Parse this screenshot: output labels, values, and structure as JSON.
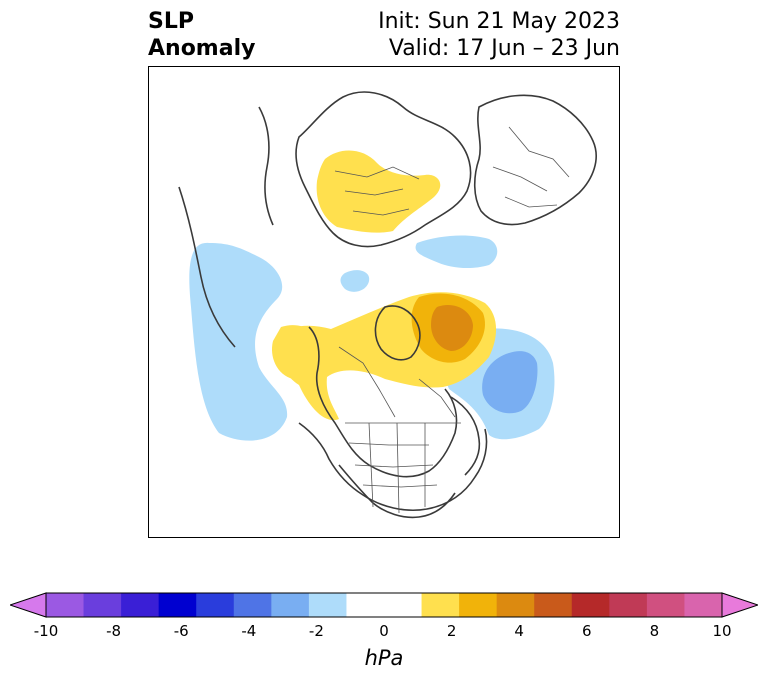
{
  "title": {
    "left_line1": "SLP",
    "left_line2": "Anomaly",
    "right_line1": "Init: Sun 21 May 2023",
    "right_line2": "Valid: 17 Jun – 23 Jun"
  },
  "colorbar": {
    "units": "hPa",
    "min": -10,
    "max": 10,
    "extend": "both",
    "ticks": [
      "-10",
      "-8",
      "-6",
      "-4",
      "-2",
      "0",
      "2",
      "4",
      "6",
      "8",
      "10"
    ],
    "colors": [
      "#d679ec",
      "#9b59e3",
      "#6a3edd",
      "#3a1fd6",
      "#0000d0",
      "#2a3ddc",
      "#4f74e6",
      "#79aef2",
      "#aedcfa",
      "#ffffff",
      "#ffffff",
      "#ffe04e",
      "#f1b30a",
      "#dc8a10",
      "#c95a1b",
      "#b52929",
      "#c03a56",
      "#d05080",
      "#d964ad",
      "#e87adb"
    ]
  },
  "map": {
    "projection": "polar-stereographic",
    "region": "Northern Hemisphere / North America & Arctic"
  }
}
